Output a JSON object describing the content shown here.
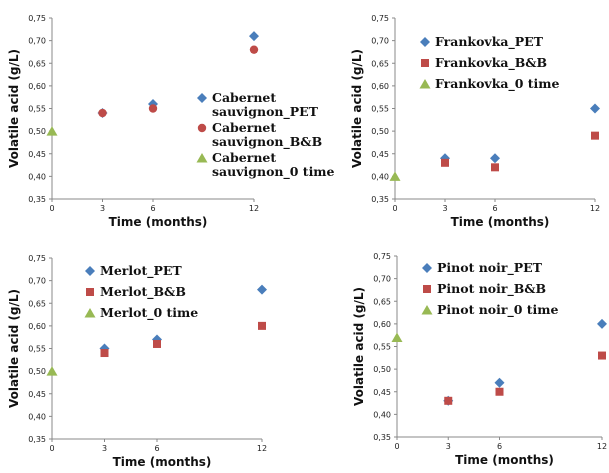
{
  "chart_data": [
    {
      "type": "scatter",
      "xlabel": "Time (months)",
      "ylabel": "Volatile acid (g/L)",
      "xticks": [
        0,
        3,
        6,
        12
      ],
      "ylim": [
        0.35,
        0.75
      ],
      "yticks": [
        "0,35",
        "0,40",
        "0,45",
        "0,50",
        "0,55",
        "0,60",
        "0,65",
        "0,70",
        "0,75"
      ],
      "series": [
        {
          "name": "Cabernet sauvignon_PET",
          "marker": "diamond",
          "color": "#4a7ebb",
          "points": [
            [
              3,
              0.54
            ],
            [
              6,
              0.56
            ],
            [
              12,
              0.71
            ]
          ]
        },
        {
          "name": "Cabernet sauvignon_B&B",
          "marker": "circle",
          "color": "#be4b48",
          "points": [
            [
              3,
              0.54
            ],
            [
              6,
              0.55
            ],
            [
              12,
              0.68
            ]
          ]
        },
        {
          "name": "Cabernet sauvignon_0 time",
          "marker": "triangle",
          "color": "#98b954",
          "points": [
            [
              0,
              0.5
            ]
          ]
        }
      ]
    },
    {
      "type": "scatter",
      "xlabel": "Time (months)",
      "ylabel": "Volatile acid (g/L)",
      "xticks": [
        0,
        3,
        6,
        12
      ],
      "ylim": [
        0.35,
        0.75
      ],
      "yticks": [
        "0,35",
        "0,40",
        "0,45",
        "0,50",
        "0,55",
        "0,60",
        "0,65",
        "0,70",
        "0,75"
      ],
      "series": [
        {
          "name": "Frankovka_PET",
          "marker": "diamond",
          "color": "#4a7ebb",
          "points": [
            [
              3,
              0.44
            ],
            [
              6,
              0.44
            ],
            [
              12,
              0.55
            ]
          ]
        },
        {
          "name": "Frankovka_B&B",
          "marker": "square",
          "color": "#be4b48",
          "points": [
            [
              3,
              0.43
            ],
            [
              6,
              0.42
            ],
            [
              12,
              0.49
            ]
          ]
        },
        {
          "name": "Frankovka_0 time",
          "marker": "triangle",
          "color": "#98b954",
          "points": [
            [
              0,
              0.4
            ]
          ]
        }
      ]
    },
    {
      "type": "scatter",
      "xlabel": "Time (months)",
      "ylabel": "Volatile acid (g/L)",
      "xticks": [
        0,
        3,
        6,
        12
      ],
      "ylim": [
        0.35,
        0.75
      ],
      "yticks": [
        "0,35",
        "0,40",
        "0,45",
        "0,50",
        "0,55",
        "0,60",
        "0,65",
        "0,70",
        "0,75"
      ],
      "series": [
        {
          "name": "Merlot_PET",
          "marker": "diamond",
          "color": "#4a7ebb",
          "points": [
            [
              3,
              0.55
            ],
            [
              6,
              0.57
            ],
            [
              12,
              0.68
            ]
          ]
        },
        {
          "name": "Merlot_B&B",
          "marker": "square",
          "color": "#be4b48",
          "points": [
            [
              3,
              0.54
            ],
            [
              6,
              0.56
            ],
            [
              12,
              0.6
            ]
          ]
        },
        {
          "name": "Merlot_0 time",
          "marker": "triangle",
          "color": "#98b954",
          "points": [
            [
              0,
              0.5
            ]
          ]
        }
      ]
    },
    {
      "type": "scatter",
      "xlabel": "Time (months)",
      "ylabel": "Volatile acid (g/L)",
      "xticks": [
        0,
        3,
        6,
        12
      ],
      "ylim": [
        0.35,
        0.75
      ],
      "yticks": [
        "0,35",
        "0,40",
        "0,45",
        "0,50",
        "0,55",
        "0,60",
        "0,65",
        "0,70",
        "0,75"
      ],
      "series": [
        {
          "name": "Pinot noir_PET",
          "marker": "diamond",
          "color": "#4a7ebb",
          "points": [
            [
              3,
              0.43
            ],
            [
              6,
              0.47
            ],
            [
              12,
              0.6
            ]
          ]
        },
        {
          "name": "Pinot noir_B&B",
          "marker": "square",
          "color": "#be4b48",
          "points": [
            [
              3,
              0.43
            ],
            [
              6,
              0.45
            ],
            [
              12,
              0.53
            ]
          ]
        },
        {
          "name": "Pinot noir_0 time",
          "marker": "triangle",
          "color": "#98b954",
          "points": [
            [
              0,
              0.57
            ]
          ]
        }
      ]
    }
  ]
}
